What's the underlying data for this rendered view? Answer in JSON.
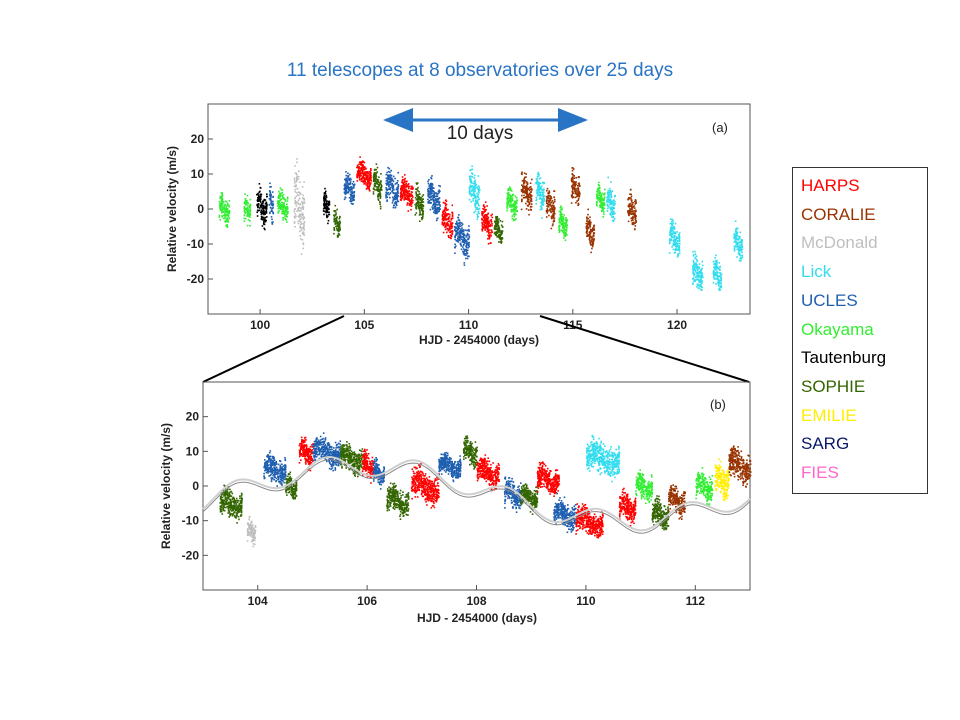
{
  "slide_title": "11 telescopes at 8 observatories over 25 days",
  "span_label": "10 days",
  "legend": [
    {
      "name": "HARPS",
      "color": "#ff0000"
    },
    {
      "name": "CORALIE",
      "color": "#993300"
    },
    {
      "name": "McDonald",
      "color": "#bfbfbf"
    },
    {
      "name": "Lick",
      "color": "#33ddee"
    },
    {
      "name": "UCLES",
      "color": "#1f5fb0"
    },
    {
      "name": "Okayama",
      "color": "#33ee33"
    },
    {
      "name": "Tautenburg",
      "color": "#000000"
    },
    {
      "name": "SOPHIE",
      "color": "#336600"
    },
    {
      "name": "EMILIE",
      "color": "#ffee00"
    },
    {
      "name": "SARG",
      "color": "#0a1a66"
    },
    {
      "name": "FIES",
      "color": "#ff66cc"
    }
  ],
  "chart_data": [
    {
      "type": "scatter",
      "panel_label": "(a)",
      "xlabel": "HJD - 2454000 (days)",
      "ylabel": "Relative velocity (m/s)",
      "xlim": [
        97.5,
        123.5
      ],
      "ylim": [
        -30,
        30
      ],
      "xticks": [
        100,
        105,
        110,
        115,
        120
      ],
      "yticks": [
        -20,
        -10,
        0,
        10,
        20
      ],
      "groups": [
        {
          "instrument": "Okayama",
          "color": "#33ee33",
          "x": [
            98.0,
            98.5
          ],
          "center": 0,
          "spread": 5
        },
        {
          "instrument": "Okayama",
          "color": "#33ee33",
          "x": [
            99.2,
            99.5
          ],
          "center": 0,
          "spread": 5
        },
        {
          "instrument": "Tautenburg",
          "color": "#000000",
          "x": [
            99.8,
            100.3
          ],
          "center": 1,
          "spread": 6
        },
        {
          "instrument": "UCLES",
          "color": "#1f5fb0",
          "x": [
            100.4,
            100.6
          ],
          "center": 2,
          "spread": 6
        },
        {
          "instrument": "Okayama",
          "color": "#33ee33",
          "x": [
            100.8,
            101.3
          ],
          "center": 1,
          "spread": 5
        },
        {
          "instrument": "McDonald",
          "color": "#bfbfbf",
          "x": [
            101.6,
            102.1
          ],
          "center": 0,
          "spread": 14
        },
        {
          "instrument": "Tautenburg",
          "color": "#000000",
          "x": [
            103.0,
            103.3
          ],
          "center": 1,
          "spread": 5
        },
        {
          "instrument": "SOPHIE",
          "color": "#336600",
          "x": [
            103.5,
            103.8
          ],
          "center": -4,
          "spread": 5
        },
        {
          "instrument": "UCLES",
          "color": "#1f5fb0",
          "x": [
            104.0,
            104.5
          ],
          "center": 6,
          "spread": 5
        },
        {
          "instrument": "HARPS",
          "color": "#ff0000",
          "x": [
            104.6,
            105.3
          ],
          "center": 10,
          "spread": 5
        },
        {
          "instrument": "SOPHIE",
          "color": "#336600",
          "x": [
            105.4,
            105.8
          ],
          "center": 7,
          "spread": 6
        },
        {
          "instrument": "UCLES",
          "color": "#1f5fb0",
          "x": [
            106.0,
            106.6
          ],
          "center": 6,
          "spread": 6
        },
        {
          "instrument": "HARPS",
          "color": "#ff0000",
          "x": [
            106.7,
            107.3
          ],
          "center": 5,
          "spread": 5
        },
        {
          "instrument": "SOPHIE",
          "color": "#336600",
          "x": [
            107.4,
            107.8
          ],
          "center": 2,
          "spread": 6
        },
        {
          "instrument": "UCLES",
          "color": "#1f5fb0",
          "x": [
            108.0,
            108.6
          ],
          "center": 3,
          "spread": 6
        },
        {
          "instrument": "HARPS",
          "color": "#ff0000",
          "x": [
            108.7,
            109.2
          ],
          "center": -3,
          "spread": 6
        },
        {
          "instrument": "UCLES",
          "color": "#1f5fb0",
          "x": [
            109.3,
            110.0
          ],
          "center": -8,
          "spread": 7
        },
        {
          "instrument": "Lick",
          "color": "#33ddee",
          "x": [
            110.0,
            110.5
          ],
          "center": 5,
          "spread": 8
        },
        {
          "instrument": "HARPS",
          "color": "#ff0000",
          "x": [
            110.6,
            111.1
          ],
          "center": -4,
          "spread": 6
        },
        {
          "instrument": "SOPHIE",
          "color": "#336600",
          "x": [
            111.2,
            111.6
          ],
          "center": -6,
          "spread": 5
        },
        {
          "instrument": "Okayama",
          "color": "#33ee33",
          "x": [
            111.8,
            112.3
          ],
          "center": 2,
          "spread": 5
        },
        {
          "instrument": "CORALIE",
          "color": "#993300",
          "x": [
            112.5,
            113.0
          ],
          "center": 5,
          "spread": 6
        },
        {
          "instrument": "Lick",
          "color": "#33ddee",
          "x": [
            113.2,
            113.6
          ],
          "center": 5,
          "spread": 6
        },
        {
          "instrument": "CORALIE",
          "color": "#993300",
          "x": [
            113.7,
            114.1
          ],
          "center": 1,
          "spread": 6
        },
        {
          "instrument": "Okayama",
          "color": "#33ee33",
          "x": [
            114.3,
            114.7
          ],
          "center": -4,
          "spread": 5
        },
        {
          "instrument": "CORALIE",
          "color": "#993300",
          "x": [
            114.9,
            115.3
          ],
          "center": 6,
          "spread": 6
        },
        {
          "instrument": "CORALIE",
          "color": "#993300",
          "x": [
            115.6,
            116.0
          ],
          "center": -6,
          "spread": 6
        },
        {
          "instrument": "Okayama",
          "color": "#33ee33",
          "x": [
            116.1,
            116.5
          ],
          "center": 3,
          "spread": 5
        },
        {
          "instrument": "Lick",
          "color": "#33ddee",
          "x": [
            116.6,
            117.0
          ],
          "center": 2,
          "spread": 6
        },
        {
          "instrument": "CORALIE",
          "color": "#993300",
          "x": [
            117.6,
            118.0
          ],
          "center": 0,
          "spread": 6
        },
        {
          "instrument": "Lick",
          "color": "#33ddee",
          "x": [
            119.6,
            120.1
          ],
          "center": -8,
          "spread": 6
        },
        {
          "instrument": "Lick",
          "color": "#33ddee",
          "x": [
            120.7,
            121.2
          ],
          "center": -18,
          "spread": 6
        },
        {
          "instrument": "Lick",
          "color": "#33ddee",
          "x": [
            121.7,
            122.1
          ],
          "center": -18,
          "spread": 6
        },
        {
          "instrument": "Lick",
          "color": "#33ddee",
          "x": [
            122.7,
            123.1
          ],
          "center": -10,
          "spread": 6
        }
      ]
    },
    {
      "type": "scatter",
      "panel_label": "(b)",
      "xlabel": "HJD - 2454000 (days)",
      "ylabel": "Relative velocity (m/s)",
      "xlim": [
        103,
        113
      ],
      "ylim": [
        -30,
        30
      ],
      "xticks": [
        104,
        106,
        108,
        110,
        112
      ],
      "yticks": [
        -20,
        -10,
        0,
        10,
        20
      ],
      "model_curve": "gray",
      "groups": [
        {
          "instrument": "SOPHIE",
          "color": "#336600",
          "x": [
            103.3,
            103.7
          ],
          "center": -5,
          "spread": 5
        },
        {
          "instrument": "McDonald",
          "color": "#bfbfbf",
          "x": [
            103.8,
            103.95
          ],
          "center": -13,
          "spread": 4
        },
        {
          "instrument": "UCLES",
          "color": "#1f5fb0",
          "x": [
            104.1,
            104.5
          ],
          "center": 5,
          "spread": 5
        },
        {
          "instrument": "SOPHIE",
          "color": "#336600",
          "x": [
            104.5,
            104.7
          ],
          "center": 0,
          "spread": 4
        },
        {
          "instrument": "HARPS",
          "color": "#ff0000",
          "x": [
            104.75,
            105.0
          ],
          "center": 10,
          "spread": 5
        },
        {
          "instrument": "UCLES",
          "color": "#1f5fb0",
          "x": [
            105.0,
            105.5
          ],
          "center": 10,
          "spread": 5
        },
        {
          "instrument": "SOPHIE",
          "color": "#336600",
          "x": [
            105.5,
            105.9
          ],
          "center": 8,
          "spread": 5
        },
        {
          "instrument": "HARPS",
          "color": "#ff0000",
          "x": [
            105.9,
            106.1
          ],
          "center": 6,
          "spread": 5
        },
        {
          "instrument": "UCLES",
          "color": "#1f5fb0",
          "x": [
            106.1,
            106.3
          ],
          "center": 4,
          "spread": 4
        },
        {
          "instrument": "SOPHIE",
          "color": "#336600",
          "x": [
            106.35,
            106.75
          ],
          "center": -4,
          "spread": 5
        },
        {
          "instrument": "HARPS",
          "color": "#ff0000",
          "x": [
            106.8,
            107.3
          ],
          "center": 0,
          "spread": 6
        },
        {
          "instrument": "UCLES",
          "color": "#1f5fb0",
          "x": [
            107.3,
            107.7
          ],
          "center": 6,
          "spread": 4
        },
        {
          "instrument": "SOPHIE",
          "color": "#336600",
          "x": [
            107.75,
            108.0
          ],
          "center": 10,
          "spread": 5
        },
        {
          "instrument": "HARPS",
          "color": "#ff0000",
          "x": [
            108.0,
            108.4
          ],
          "center": 4,
          "spread": 5
        },
        {
          "instrument": "UCLES",
          "color": "#1f5fb0",
          "x": [
            108.5,
            108.8
          ],
          "center": -2,
          "spread": 5
        },
        {
          "instrument": "SOPHIE",
          "color": "#336600",
          "x": [
            108.8,
            109.1
          ],
          "center": -3,
          "spread": 4
        },
        {
          "instrument": "HARPS",
          "color": "#ff0000",
          "x": [
            109.1,
            109.5
          ],
          "center": 2,
          "spread": 5
        },
        {
          "instrument": "UCLES",
          "color": "#1f5fb0",
          "x": [
            109.4,
            109.8
          ],
          "center": -8,
          "spread": 5
        },
        {
          "instrument": "HARPS",
          "color": "#ff0000",
          "x": [
            109.8,
            110.3
          ],
          "center": -10,
          "spread": 5
        },
        {
          "instrument": "Lick",
          "color": "#33ddee",
          "x": [
            110.0,
            110.6
          ],
          "center": 8,
          "spread": 6
        },
        {
          "instrument": "HARPS",
          "color": "#ff0000",
          "x": [
            110.6,
            110.9
          ],
          "center": -6,
          "spread": 5
        },
        {
          "instrument": "Okayama",
          "color": "#33ee33",
          "x": [
            110.9,
            111.2
          ],
          "center": 0,
          "spread": 5
        },
        {
          "instrument": "SOPHIE",
          "color": "#336600",
          "x": [
            111.2,
            111.5
          ],
          "center": -8,
          "spread": 5
        },
        {
          "instrument": "CORALIE",
          "color": "#993300",
          "x": [
            111.5,
            111.8
          ],
          "center": -4,
          "spread": 5
        },
        {
          "instrument": "Okayama",
          "color": "#33ee33",
          "x": [
            112.0,
            112.3
          ],
          "center": 0,
          "spread": 5
        },
        {
          "instrument": "EMILIE",
          "color": "#ffee00",
          "x": [
            112.35,
            112.6
          ],
          "center": 2,
          "spread": 6
        },
        {
          "instrument": "CORALIE",
          "color": "#993300",
          "x": [
            112.6,
            113.0
          ],
          "center": 6,
          "spread": 6
        }
      ]
    }
  ]
}
